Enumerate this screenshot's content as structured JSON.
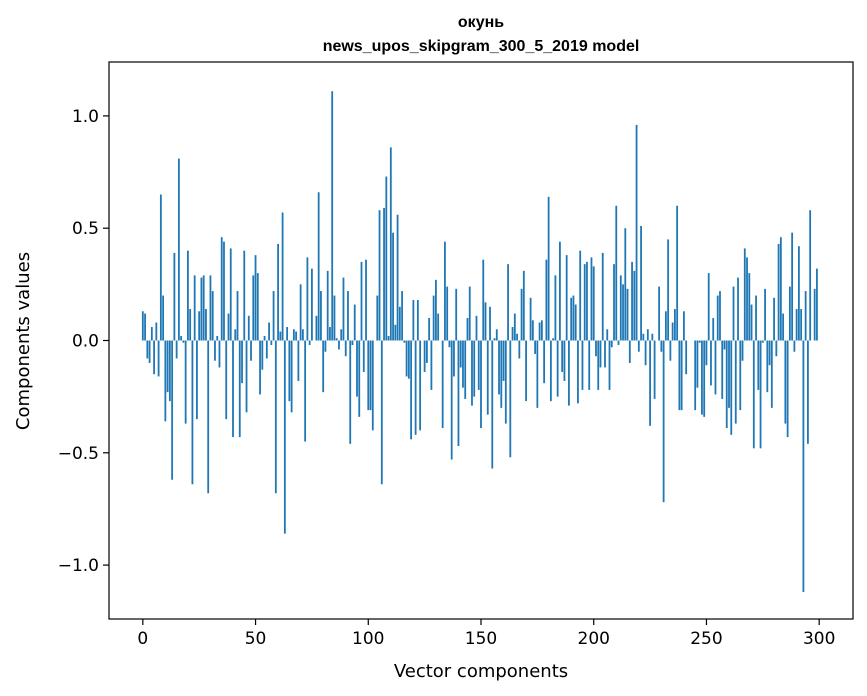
{
  "chart_data": {
    "type": "bar",
    "title": "окунь",
    "subtitle": "news_upos_skipgram_300_5_2019 model",
    "xlabel": "Vector components",
    "ylabel": "Components values",
    "xlim": [
      -15,
      315
    ],
    "ylim": [
      -1.24,
      1.24
    ],
    "xticks": [
      0,
      50,
      100,
      150,
      200,
      250,
      300
    ],
    "yticks": [
      1.0,
      0.5,
      0.0,
      -0.5,
      -1.0
    ],
    "xtick_labels": [
      "0",
      "50",
      "100",
      "150",
      "200",
      "250",
      "300"
    ],
    "ytick_labels": [
      "1.0",
      "0.5",
      "0.0",
      "−0.5",
      "−1.0"
    ],
    "grid": false,
    "bar_color": "#1f77b4",
    "values": [
      0.13,
      0.12,
      -0.08,
      -0.1,
      0.06,
      -0.15,
      0.08,
      -0.16,
      0.65,
      0.2,
      -0.36,
      -0.23,
      -0.27,
      -0.62,
      0.39,
      -0.08,
      0.81,
      0.02,
      -0.01,
      -0.37,
      0.4,
      0.14,
      -0.64,
      0.29,
      -0.35,
      0.13,
      0.28,
      0.29,
      0.14,
      -0.68,
      0.29,
      0.22,
      -0.09,
      0.02,
      -0.12,
      0.46,
      0.44,
      -0.35,
      0.12,
      0.41,
      -0.43,
      0.05,
      0.22,
      -0.43,
      -0.19,
      0.4,
      -0.32,
      0.11,
      -0.09,
      0.29,
      0.38,
      0.3,
      -0.24,
      -0.13,
      0.02,
      -0.08,
      0.08,
      -0.02,
      0.22,
      -0.68,
      0.43,
      0.04,
      0.57,
      -0.86,
      0.06,
      -0.27,
      -0.32,
      0.05,
      0.04,
      -0.18,
      0.25,
      0.05,
      -0.45,
      0.37,
      -0.02,
      0.32,
      0.0,
      0.11,
      0.66,
      0.22,
      -0.23,
      -0.05,
      0.31,
      0.06,
      1.11,
      0.2,
      0.01,
      -0.04,
      0.05,
      0.28,
      -0.07,
      0.22,
      -0.46,
      -0.02,
      0.16,
      -0.25,
      -0.34,
      0.35,
      -0.14,
      0.36,
      -0.31,
      -0.31,
      -0.4,
      0.0,
      0.2,
      0.58,
      -0.64,
      0.59,
      0.73,
      0.02,
      0.86,
      0.48,
      0.07,
      0.56,
      0.15,
      0.22,
      -0.01,
      -0.16,
      -0.17,
      -0.44,
      0.18,
      -0.42,
      0.18,
      -0.4,
      0.0,
      -0.14,
      -0.1,
      0.1,
      -0.22,
      0.2,
      0.27,
      0.12,
      0.0,
      -0.39,
      0.44,
      0.24,
      -0.03,
      -0.53,
      -0.16,
      0.23,
      -0.47,
      -0.12,
      -0.21,
      -0.26,
      0.1,
      0.24,
      -0.29,
      -0.25,
      0.11,
      -0.22,
      -0.39,
      0.36,
      0.17,
      -0.33,
      0.15,
      -0.57,
      0.01,
      0.05,
      -0.24,
      -0.3,
      -0.18,
      -0.37,
      0.34,
      -0.52,
      0.06,
      0.12,
      0.03,
      -0.08,
      0.23,
      0.31,
      -0.27,
      0.0,
      0.19,
      0.09,
      -0.06,
      -0.3,
      0.08,
      0.09,
      -0.19,
      0.36,
      0.64,
      -0.27,
      0.01,
      0.29,
      -0.25,
      0.44,
      -0.14,
      -0.18,
      0.38,
      -0.29,
      0.19,
      0.2,
      0.16,
      -0.28,
      0.4,
      -0.22,
      0.34,
      0.35,
      -0.22,
      0.37,
      0.33,
      -0.07,
      -0.22,
      -0.12,
      0.39,
      -0.12,
      0.05,
      -0.22,
      -0.03,
      0.34,
      0.6,
      -0.02,
      0.29,
      0.25,
      0.5,
      0.23,
      -0.1,
      0.35,
      0.31,
      0.96,
      -0.05,
      0.51,
      0.03,
      -0.11,
      0.05,
      -0.38,
      0.03,
      -0.26,
      0.0,
      0.24,
      -0.05,
      -0.72,
      0.13,
      0.45,
      -0.09,
      0.08,
      0.14,
      0.6,
      -0.31,
      -0.31,
      0.13,
      -0.15,
      0.0,
      0.0,
      0.0,
      -0.31,
      -0.21,
      -0.01,
      -0.33,
      -0.34,
      -0.11,
      0.3,
      -0.2,
      0.1,
      -0.24,
      0.2,
      0.22,
      -0.26,
      -0.04,
      -0.39,
      -0.3,
      -0.42,
      0.24,
      -0.37,
      0.28,
      -0.31,
      -0.09,
      0.41,
      0.37,
      0.3,
      0.16,
      -0.48,
      0.2,
      -0.22,
      -0.48,
      -0.01,
      0.23,
      -0.23,
      -0.11,
      -0.3,
      0.19,
      -0.07,
      0.43,
      0.46,
      0.12,
      -0.37,
      -0.43,
      0.24,
      0.48,
      -0.05,
      0.14,
      0.42,
      0.14,
      -1.12,
      0.22,
      -0.46,
      0.58,
      0.0,
      0.23,
      0.32
    ]
  }
}
